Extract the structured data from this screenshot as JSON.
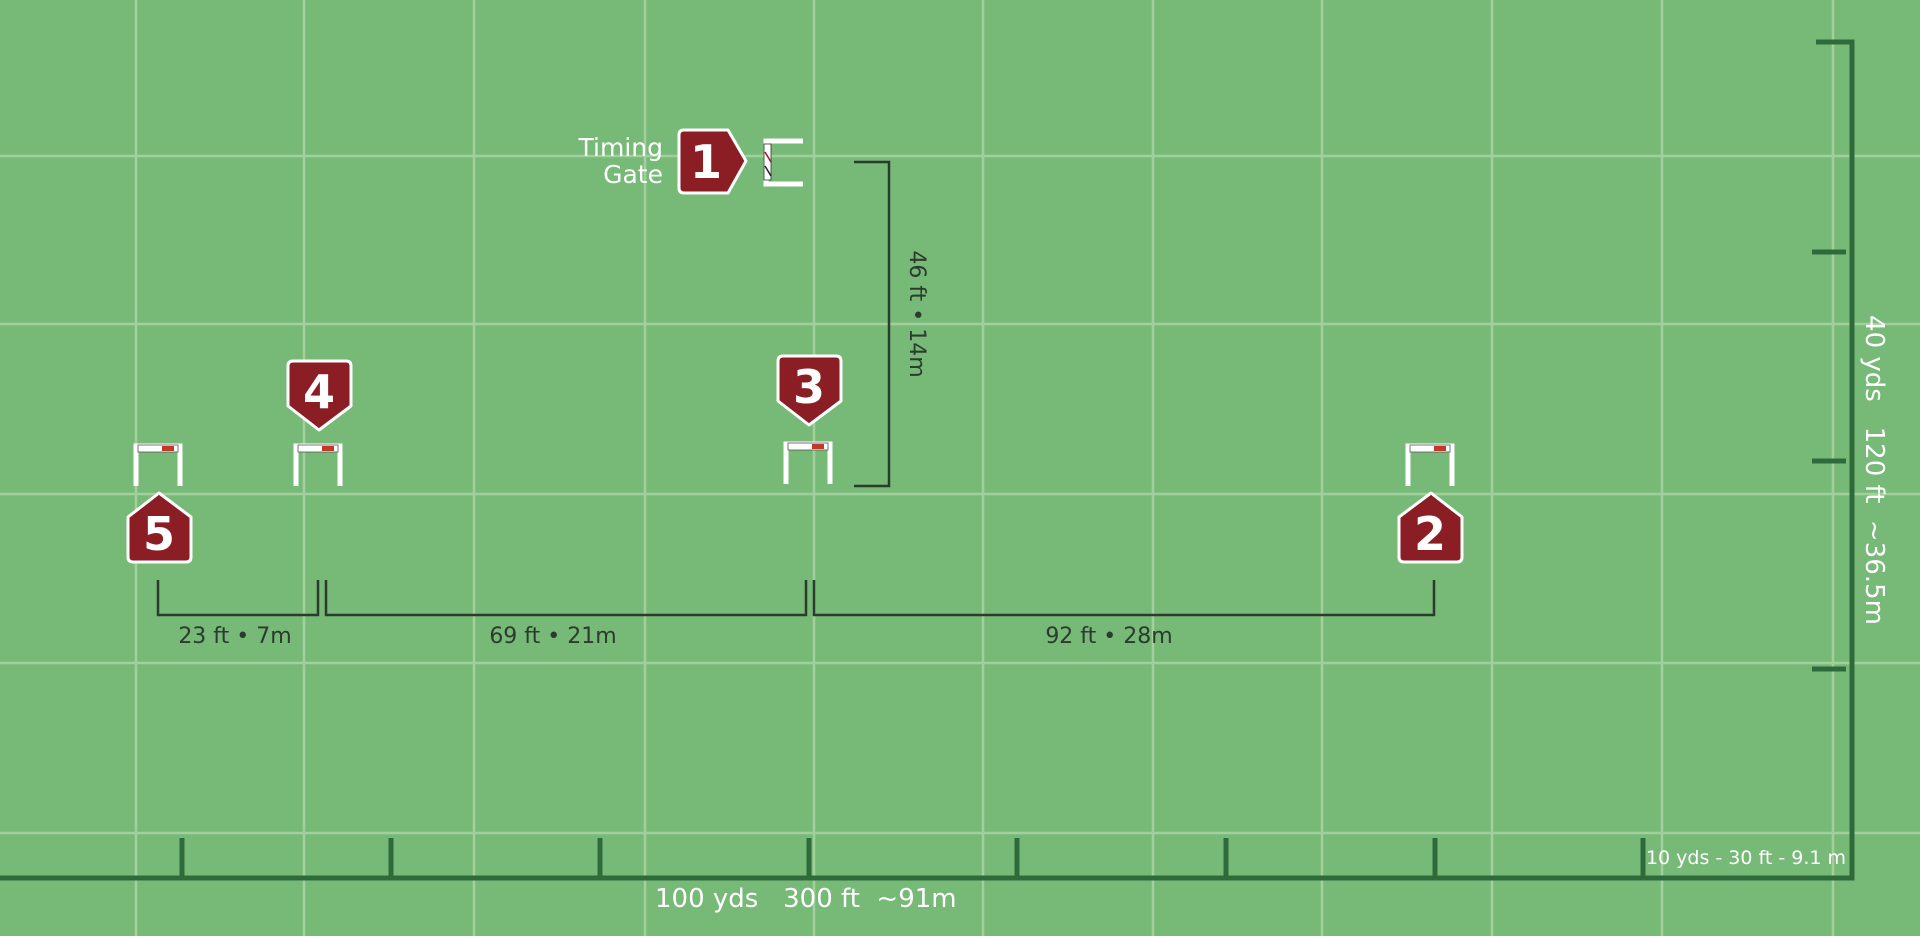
{
  "colors": {
    "field": "#77b977",
    "grid_line": "#a7d3a2",
    "frame": "#2f6b3a",
    "marker_fill": "#8b1e24",
    "marker_border": "#ffffff",
    "dimension_line": "#2b3b2e",
    "gate": "#ffffff"
  },
  "labels": {
    "timing_gate_line1": "Timing",
    "timing_gate_line2": "Gate",
    "horizontal_scale": "100 yds   300 ft  ~91m",
    "vertical_scale": "40 yds   120 ft  ~36.5m",
    "tick_spacing": "10 yds - 30 ft - 9.1 m"
  },
  "dimensions": {
    "gap_5_4": "23 ft • 7m",
    "gap_4_3": "69 ft • 21m",
    "gap_3_2": "92 ft • 28m",
    "gap_1_3": "46 ft • 14m"
  },
  "markers": [
    {
      "number": "1",
      "shape": "arrow-right-icon"
    },
    {
      "number": "2",
      "shape": "pentagon-up-icon"
    },
    {
      "number": "3",
      "shape": "pentagon-down-icon"
    },
    {
      "number": "4",
      "shape": "pentagon-down-icon"
    },
    {
      "number": "5",
      "shape": "pentagon-up-icon"
    }
  ],
  "gates": [
    {
      "id": "timing",
      "icon": "timing-gate-icon"
    },
    {
      "id": "2",
      "icon": "gate-icon"
    },
    {
      "id": "3",
      "icon": "gate-icon"
    },
    {
      "id": "4",
      "icon": "gate-icon"
    },
    {
      "id": "5",
      "icon": "gate-icon"
    }
  ]
}
